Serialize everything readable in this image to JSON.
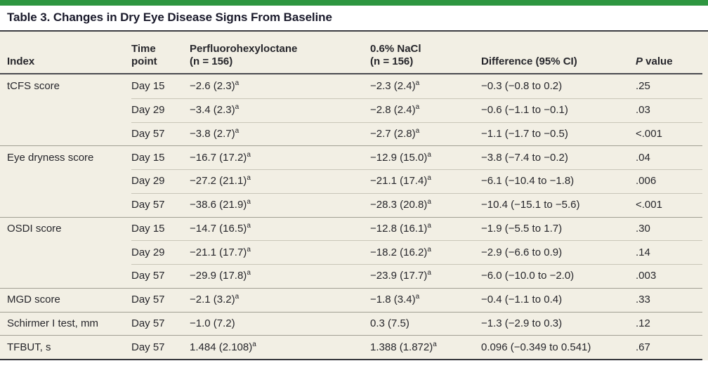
{
  "accent": {
    "top_bar_green": "#2e9640",
    "panel_background": "#f2efe4"
  },
  "table": {
    "title": "Table 3. Changes in Dry Eye Disease Signs From Baseline",
    "headers": {
      "index": "Index",
      "time": "Time\npoint",
      "drug": "Perfluorohexyloctane\n(n = 156)",
      "nacl": "0.6% NaCl\n(n = 156)",
      "diff": "Difference (95% CI)",
      "p_italic": "P",
      "p_rest": " value"
    },
    "rows": [
      {
        "index": "tCFS score",
        "time": "Day 15",
        "drug": "−2.6 (2.3)",
        "drug_sup": "a",
        "nacl": "−2.3 (2.4)",
        "nacl_sup": "a",
        "diff": "−0.3 (−0.8 to 0.2)",
        "p": ".25",
        "group_start": true
      },
      {
        "index": "",
        "time": "Day 29",
        "drug": "−3.4 (2.3)",
        "drug_sup": "a",
        "nacl": "−2.8 (2.4)",
        "nacl_sup": "a",
        "diff": "−0.6 (−1.1 to −0.1)",
        "p": ".03",
        "group_start": false
      },
      {
        "index": "",
        "time": "Day 57",
        "drug": "−3.8 (2.7)",
        "drug_sup": "a",
        "nacl": "−2.7 (2.8)",
        "nacl_sup": "a",
        "diff": "−1.1 (−1.7 to −0.5)",
        "p": "<.001",
        "group_start": false
      },
      {
        "index": "Eye dryness score",
        "time": "Day 15",
        "drug": "−16.7 (17.2)",
        "drug_sup": "a",
        "nacl": "−12.9 (15.0)",
        "nacl_sup": "a",
        "diff": "−3.8 (−7.4 to −0.2)",
        "p": ".04",
        "group_start": true
      },
      {
        "index": "",
        "time": "Day 29",
        "drug": "−27.2 (21.1)",
        "drug_sup": "a",
        "nacl": "−21.1 (17.4)",
        "nacl_sup": "a",
        "diff": "−6.1 (−10.4 to −1.8)",
        "p": ".006",
        "group_start": false
      },
      {
        "index": "",
        "time": "Day 57",
        "drug": "−38.6 (21.9)",
        "drug_sup": "a",
        "nacl": "−28.3 (20.8)",
        "nacl_sup": "a",
        "diff": "−10.4 (−15.1 to −5.6)",
        "p": "<.001",
        "group_start": false
      },
      {
        "index": "OSDI score",
        "time": "Day 15",
        "drug": "−14.7 (16.5)",
        "drug_sup": "a",
        "nacl": "−12.8 (16.1)",
        "nacl_sup": "a",
        "diff": "−1.9 (−5.5 to 1.7)",
        "p": ".30",
        "group_start": true
      },
      {
        "index": "",
        "time": "Day 29",
        "drug": "−21.1 (17.7)",
        "drug_sup": "a",
        "nacl": "−18.2 (16.2)",
        "nacl_sup": "a",
        "diff": "−2.9 (−6.6 to 0.9)",
        "p": ".14",
        "group_start": false
      },
      {
        "index": "",
        "time": "Day 57",
        "drug": "−29.9 (17.8)",
        "drug_sup": "a",
        "nacl": "−23.9 (17.7)",
        "nacl_sup": "a",
        "diff": "−6.0 (−10.0 to −2.0)",
        "p": ".003",
        "group_start": false
      },
      {
        "index": "MGD score",
        "time": "Day 57",
        "drug": "−2.1 (3.2)",
        "drug_sup": "a",
        "nacl": "−1.8 (3.4)",
        "nacl_sup": "a",
        "diff": "−0.4 (−1.1 to 0.4)",
        "p": ".33",
        "group_start": true
      },
      {
        "index": "Schirmer I test, mm",
        "time": "Day 57",
        "drug": "−1.0 (7.2)",
        "drug_sup": "",
        "nacl": "0.3 (7.5)",
        "nacl_sup": "",
        "diff": "−1.3 (−2.9 to 0.3)",
        "p": ".12",
        "group_start": true
      },
      {
        "index": "TFBUT, s",
        "time": "Day 57",
        "drug": "1.484 (2.108)",
        "drug_sup": "a",
        "nacl": "1.388 (1.872)",
        "nacl_sup": "a",
        "diff": "0.096 (−0.349 to 0.541)",
        "p": ".67",
        "group_start": true
      }
    ]
  }
}
